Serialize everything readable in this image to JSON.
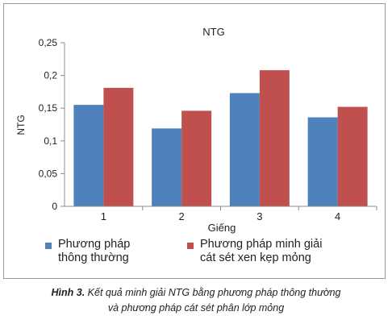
{
  "chart_data": {
    "type": "bar",
    "title": "NTG",
    "xlabel": "Giếng",
    "ylabel": "NTG",
    "categories": [
      "1",
      "2",
      "3",
      "4"
    ],
    "ylim": [
      0,
      0.25
    ],
    "yticks": [
      "0",
      "0,05",
      "0,1",
      "0,15",
      "0,2",
      "0,25"
    ],
    "series": [
      {
        "name": "Phương pháp thông thường",
        "legend_lines": [
          "Phương pháp",
          "thông thường"
        ],
        "color": "#4f81bd",
        "values": [
          0.155,
          0.119,
          0.173,
          0.136
        ]
      },
      {
        "name": "Phương pháp minh giải cát sét xen kẹp mỏng",
        "legend_lines": [
          "Phương pháp minh giải",
          "cát sét xen kẹp mỏng"
        ],
        "color": "#c0504d",
        "values": [
          0.181,
          0.146,
          0.208,
          0.152
        ]
      }
    ],
    "legend_position": "bottom",
    "grid": false
  },
  "caption": {
    "label": "Hình 3.",
    "line1": "Kết quả minh giải NTG bằng phương pháp thông thường",
    "line2": "và phương pháp cát sét phân lớp mỏng"
  }
}
